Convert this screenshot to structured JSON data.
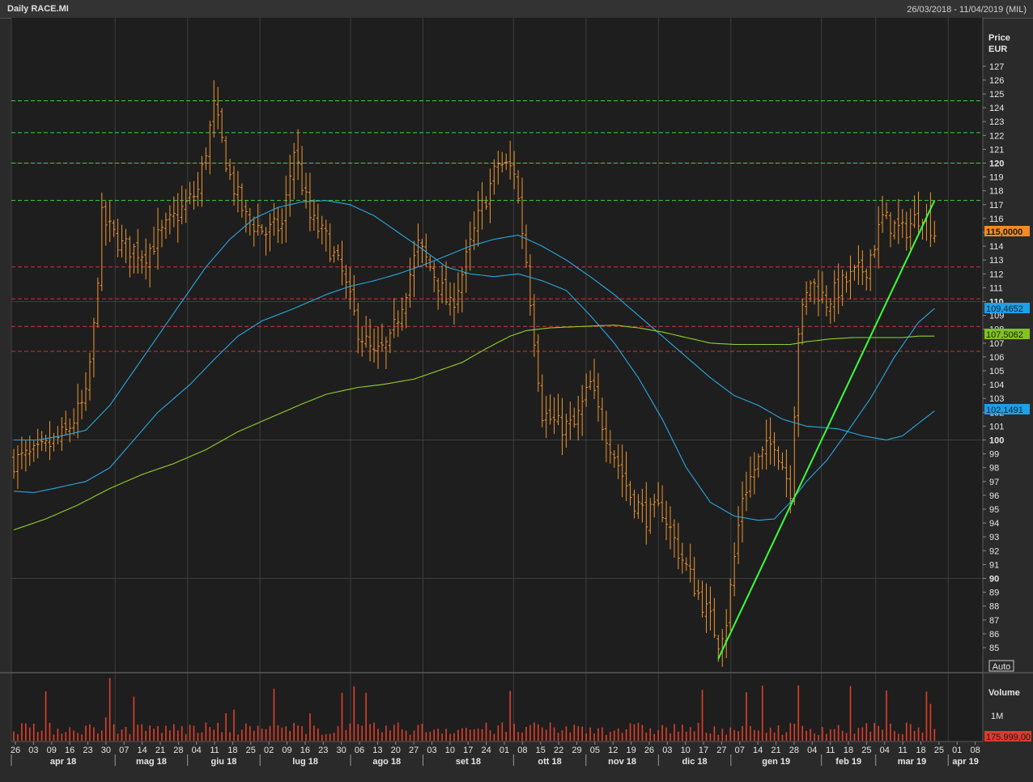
{
  "header": {
    "title": "Daily RACE.MI",
    "date_range": "26/03/2018 - 11/04/2019 (MIL)"
  },
  "price_axis": {
    "title_line1": "Price",
    "title_line2": "EUR",
    "auto_button": "Auto"
  },
  "volume_axis": {
    "title": "Volume",
    "tick_1m": "1M"
  },
  "badges": {
    "last_price": "115,0000",
    "ma_fast": "109,4652",
    "ma_slow": "107,5062",
    "ma_mid": "102,1491",
    "last_volume": "175.999,00"
  },
  "colors": {
    "background": "#2a2a2a",
    "plot_bg": "#1e1e1e",
    "grid": "#3d3d3d",
    "price_bars": "#f0962d",
    "volume_bars": "#e0402a",
    "ma_light_blue": "#2aa8e0",
    "ma_green": "#8fd12e",
    "trendline": "#3cff3c",
    "resistance_lines": "#3cd33c",
    "support_lines": "#d23232",
    "badge_price": "#f28c1e",
    "badge_blue": "#1ea0e6",
    "badge_green": "#84c21e",
    "badge_volume": "#e03a2a"
  },
  "chart_data": {
    "type": "bar",
    "title": "Daily RACE.MI",
    "ylabel": "Price EUR",
    "ylim": [
      84,
      128
    ],
    "volume_ylim": [
      0,
      1800000
    ],
    "price_ticks": [
      85,
      86,
      87,
      88,
      89,
      90,
      91,
      92,
      93,
      94,
      95,
      96,
      97,
      98,
      99,
      100,
      101,
      102,
      103,
      104,
      105,
      106,
      107,
      108,
      109,
      110,
      111,
      112,
      113,
      114,
      115,
      116,
      117,
      118,
      119,
      120,
      121,
      122,
      123,
      124,
      125,
      126,
      127
    ],
    "bold_ticks": [
      90,
      100,
      110,
      120
    ],
    "x_day_labels": [
      "26",
      "03",
      "09",
      "16",
      "23",
      "30",
      "07",
      "14",
      "21",
      "28",
      "04",
      "11",
      "18",
      "25",
      "02",
      "09",
      "16",
      "23",
      "30",
      "06",
      "13",
      "20",
      "27",
      "03",
      "10",
      "17",
      "24",
      "01",
      "08",
      "15",
      "22",
      "29",
      "05",
      "12",
      "19",
      "26",
      "03",
      "10",
      "17",
      "27",
      "07",
      "14",
      "21",
      "28",
      "04",
      "11",
      "18",
      "25",
      "04",
      "11",
      "18",
      "25",
      "01",
      "08"
    ],
    "x_month_labels": [
      "apr 18",
      "mag 18",
      "giu 18",
      "lug 18",
      "ago 18",
      "set 18",
      "ott 18",
      "nov 18",
      "dic 18",
      "gen 19",
      "feb 19",
      "mar 19",
      "apr 19"
    ],
    "horizontal_levels": {
      "resistance": [
        124.5,
        122.2,
        120.0,
        117.3
      ],
      "support": [
        112.5,
        110.2,
        108.2,
        106.4
      ]
    },
    "trendline": {
      "from": [
        "27 dic 18",
        84.2
      ],
      "to": [
        "25 mar 19",
        117.3
      ]
    },
    "price_anchors": [
      [
        0,
        98.5
      ],
      [
        6,
        99
      ],
      [
        13,
        100.5
      ],
      [
        18,
        103
      ],
      [
        20,
        108
      ],
      [
        22,
        116
      ],
      [
        27,
        114
      ],
      [
        33,
        113.5
      ],
      [
        40,
        116
      ],
      [
        46,
        118
      ],
      [
        50,
        124
      ],
      [
        54,
        119
      ],
      [
        58,
        116
      ],
      [
        63,
        115
      ],
      [
        67,
        115.5
      ],
      [
        70,
        121
      ],
      [
        74,
        116
      ],
      [
        78,
        114.5
      ],
      [
        82,
        112
      ],
      [
        86,
        108
      ],
      [
        90,
        106
      ],
      [
        94,
        107
      ],
      [
        98,
        111
      ],
      [
        101,
        114
      ],
      [
        105,
        112
      ],
      [
        109,
        109.5
      ],
      [
        112,
        112
      ],
      [
        116,
        116
      ],
      [
        121,
        120
      ],
      [
        125,
        119.5
      ],
      [
        128,
        113
      ],
      [
        132,
        102
      ],
      [
        136,
        101
      ],
      [
        140,
        101
      ],
      [
        144,
        104
      ],
      [
        146,
        102
      ],
      [
        150,
        99
      ],
      [
        154,
        96
      ],
      [
        158,
        94.5
      ],
      [
        162,
        95
      ],
      [
        166,
        92
      ],
      [
        170,
        89.5
      ],
      [
        174,
        87
      ],
      [
        176,
        85.5
      ],
      [
        178,
        87
      ],
      [
        182,
        96
      ],
      [
        186,
        98.5
      ],
      [
        190,
        100
      ],
      [
        194,
        96.5
      ],
      [
        196,
        108
      ],
      [
        199,
        111.5
      ],
      [
        203,
        110
      ],
      [
        208,
        111.5
      ],
      [
        213,
        112.5
      ],
      [
        217,
        116
      ],
      [
        222,
        115
      ],
      [
        227,
        116.5
      ],
      [
        230,
        115
      ]
    ],
    "series": [
      {
        "name": "",
        "color": "#2aa8e0",
        "values_anchors": [
          [
            0,
            100
          ],
          [
            6,
            100
          ],
          [
            12,
            100.3
          ],
          [
            18,
            100.7
          ],
          [
            24,
            102.5
          ],
          [
            30,
            105
          ],
          [
            36,
            107.5
          ],
          [
            42,
            110
          ],
          [
            48,
            112.5
          ],
          [
            54,
            114.5
          ],
          [
            60,
            116
          ],
          [
            66,
            116.8
          ],
          [
            72,
            117.2
          ],
          [
            78,
            117.3
          ],
          [
            84,
            117
          ],
          [
            90,
            116.2
          ],
          [
            96,
            115
          ],
          [
            102,
            113.8
          ],
          [
            108,
            112.5
          ],
          [
            114,
            112
          ],
          [
            120,
            111.8
          ],
          [
            126,
            112
          ],
          [
            132,
            111.5
          ],
          [
            138,
            110.8
          ],
          [
            144,
            109
          ],
          [
            150,
            107
          ],
          [
            156,
            104.5
          ],
          [
            162,
            101.5
          ],
          [
            168,
            98
          ],
          [
            174,
            95.5
          ],
          [
            180,
            94.5
          ],
          [
            186,
            94.2
          ],
          [
            190,
            94.3
          ],
          [
            194,
            95.5
          ],
          [
            198,
            97
          ],
          [
            203,
            98.5
          ],
          [
            208,
            100.5
          ],
          [
            214,
            103
          ],
          [
            220,
            106
          ],
          [
            226,
            108.5
          ],
          [
            230,
            109.5
          ]
        ]
      },
      {
        "name": "",
        "color": "#2aa8e0",
        "values_anchors": [
          [
            0,
            96.3
          ],
          [
            5,
            96.2
          ],
          [
            10,
            96.5
          ],
          [
            18,
            97
          ],
          [
            24,
            98
          ],
          [
            30,
            100
          ],
          [
            36,
            102
          ],
          [
            44,
            104
          ],
          [
            50,
            105.8
          ],
          [
            56,
            107.5
          ],
          [
            62,
            108.6
          ],
          [
            70,
            109.5
          ],
          [
            78,
            110.5
          ],
          [
            84,
            111.1
          ],
          [
            90,
            111.5
          ],
          [
            96,
            112
          ],
          [
            102,
            112.6
          ],
          [
            108,
            113.3
          ],
          [
            114,
            114
          ],
          [
            120,
            114.5
          ],
          [
            126,
            114.8
          ],
          [
            132,
            114
          ],
          [
            138,
            113
          ],
          [
            144,
            111.8
          ],
          [
            150,
            110.5
          ],
          [
            156,
            109
          ],
          [
            162,
            107.5
          ],
          [
            168,
            106
          ],
          [
            174,
            104.5
          ],
          [
            180,
            103.2
          ],
          [
            186,
            102.5
          ],
          [
            192,
            101.5
          ],
          [
            198,
            101
          ],
          [
            206,
            100.8
          ],
          [
            212,
            100.3
          ],
          [
            218,
            100
          ],
          [
            222,
            100.3
          ],
          [
            226,
            101.2
          ],
          [
            230,
            102.1
          ]
        ]
      },
      {
        "name": "",
        "color": "#8fd12e",
        "values_anchors": [
          [
            0,
            93.5
          ],
          [
            8,
            94.3
          ],
          [
            16,
            95.3
          ],
          [
            24,
            96.5
          ],
          [
            32,
            97.5
          ],
          [
            40,
            98.3
          ],
          [
            48,
            99.3
          ],
          [
            56,
            100.6
          ],
          [
            64,
            101.6
          ],
          [
            72,
            102.6
          ],
          [
            78,
            103.3
          ],
          [
            86,
            103.8
          ],
          [
            92,
            104
          ],
          [
            100,
            104.4
          ],
          [
            106,
            105
          ],
          [
            112,
            105.6
          ],
          [
            118,
            106.6
          ],
          [
            124,
            107.5
          ],
          [
            128,
            107.9
          ],
          [
            134,
            108.1
          ],
          [
            142,
            108.2
          ],
          [
            150,
            108.3
          ],
          [
            156,
            108.1
          ],
          [
            162,
            107.8
          ],
          [
            168,
            107.4
          ],
          [
            174,
            107
          ],
          [
            180,
            106.9
          ],
          [
            186,
            106.9
          ],
          [
            194,
            106.9
          ],
          [
            198,
            107.1
          ],
          [
            204,
            107.3
          ],
          [
            210,
            107.4
          ],
          [
            216,
            107.4
          ],
          [
            222,
            107.4
          ],
          [
            226,
            107.5
          ],
          [
            230,
            107.5
          ]
        ]
      }
    ]
  }
}
